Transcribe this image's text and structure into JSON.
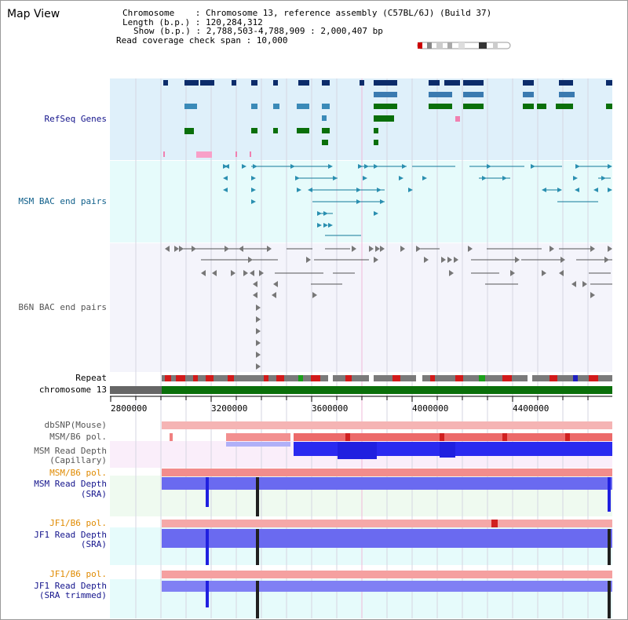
{
  "app": {
    "title": "Map View"
  },
  "info": {
    "chromosome": "Chromosome    : Chromosome 13, reference assembly (C57BL/6J) (Build 37)",
    "length": "Length (b.p.) : 120,284,312",
    "show": "Show (b.p.) : 2,788,503-4,788,909 : 2,000,407 bp",
    "coverage": "Read coverage check span : 10,000"
  },
  "tracks": {
    "refseq": "RefSeq Genes",
    "msm_bac": "MSM BAC end pairs",
    "b6n_bac": "B6N BAC end pairs",
    "repeat": "Repeat",
    "chromosome": "chromosome 13",
    "dbsnp": "dbSNP(Mouse)",
    "msm_pol": "MSM/B6 pol.",
    "msm_depth_cap_1": "MSM Read Depth",
    "msm_depth_cap_2": "(Capillary)",
    "msm_pol_sra": "MSM/B6 pol.",
    "msm_depth_sra_1": "MSM Read Depth",
    "msm_depth_sra_2": "(SRA)",
    "jf1_pol": "JF1/B6 pol.",
    "jf1_depth_1": "JF1 Read Depth",
    "jf1_depth_2": "(SRA)",
    "jf1_pol_trim": "JF1/B6 pol.",
    "jf1_trim_1": "JF1 Read Depth",
    "jf1_trim_2": "(SRA trimmed)"
  },
  "axis": {
    "ticks": [
      "2800000",
      "3200000",
      "3600000",
      "4000000",
      "4400000"
    ]
  },
  "colors": {
    "refseq_bg": "#dff0fa",
    "bac_bg": "#e6fbfb",
    "b6n_bg": "#f4f4fb",
    "navy": "#14148c",
    "teal": "#0f5f8a",
    "orange": "#e08a00",
    "chrom_green": "#0a6f0a",
    "depth_blue": "#2020f0"
  },
  "icons": {
    "ideogram": "chromosome-ideogram-icon"
  }
}
